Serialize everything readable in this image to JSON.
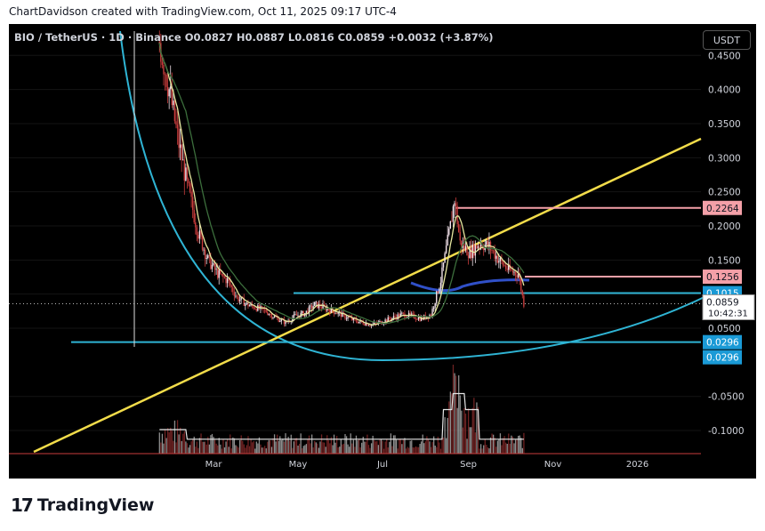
{
  "header": {
    "credit": "ChartDavidson created with TradingView.com, Oct 11, 2025 09:17 UTC-4"
  },
  "legend": {
    "pair": "BIO / TetherUS · 1D · Binance",
    "open": "O0.0827",
    "high": "H0.0887",
    "low": "L0.0816",
    "close": "C0.0859",
    "change": "+0.0032 (+3.87%)"
  },
  "currency_button": "USDT",
  "footer": {
    "brand": "TradingView",
    "logo_mark": "17"
  },
  "colors": {
    "background": "#000000",
    "up": "#f0e0e8",
    "down": "#c83c3c",
    "trendline": "#f2dc4a",
    "arc": "#2fb4d4",
    "hline_cyan": "#2fb4d4",
    "hline_pink": "#f4a0a8",
    "ma_dark": "#3c6e3c",
    "ma_light": "#e8e8a0",
    "volume_ma": "#e6e6e6",
    "cup_line": "#3050c8"
  },
  "chart_data": {
    "type": "line",
    "x_ticks": [
      "Mar",
      "May",
      "Jul",
      "Sep",
      "Nov",
      "2026"
    ],
    "y_ticks": [
      0.45,
      0.4,
      0.35,
      0.3,
      0.25,
      0.2,
      0.15,
      0.1,
      0.05,
      -0.05,
      -0.1
    ],
    "y_tick_labels": [
      "0.4500",
      "0.4000",
      "0.3500",
      "0.3000",
      "0.2500",
      "0.2000",
      "0.1500",
      "0.1000",
      "0.0500",
      "-0.0500",
      "-0.1000"
    ],
    "ylim": [
      -0.13,
      0.49
    ],
    "price_labels": [
      {
        "value": 0.2264,
        "label": "0.2264",
        "kind": "pink"
      },
      {
        "value": 0.1256,
        "label": "0.1256",
        "kind": "pink"
      },
      {
        "value": 0.1015,
        "label": "0.1015",
        "kind": "cyan"
      },
      {
        "value": 0.0296,
        "label": "0.0296",
        "kind": "cyan"
      },
      {
        "value": 0.0296,
        "label": "0.0296",
        "kind": "cyan"
      }
    ],
    "last_price": {
      "value": 0.0859,
      "label": "0.0859",
      "countdown": "10:42:31"
    },
    "horizontal_lines": [
      {
        "value": 0.1015,
        "kind": "cyan"
      },
      {
        "value": 0.0296,
        "kind": "cyan"
      },
      {
        "value": 0.2264,
        "kind": "pink"
      },
      {
        "value": 0.1256,
        "kind": "pink"
      }
    ],
    "price_series": {
      "x": [
        "Jan 21",
        "Jan 28",
        "Feb 04",
        "Feb 11",
        "Feb 18",
        "Feb 25",
        "Mar 04",
        "Mar 11",
        "Mar 18",
        "Mar 25",
        "Apr 01",
        "Apr 08",
        "Apr 15",
        "Apr 22",
        "Apr 29",
        "May 06",
        "May 13",
        "May 20",
        "May 27",
        "Jun 03",
        "Jun 10",
        "Jun 17",
        "Jun 24",
        "Jul 01",
        "Jul 08",
        "Jul 15",
        "Jul 22",
        "Jul 29",
        "Aug 05",
        "Aug 12",
        "Aug 19",
        "Aug 22",
        "Aug 26",
        "Sep 02",
        "Sep 09",
        "Sep 16",
        "Sep 23",
        "Sep 30",
        "Oct 07",
        "Oct 11"
      ],
      "close": [
        0.47,
        0.4,
        0.32,
        0.25,
        0.19,
        0.15,
        0.13,
        0.12,
        0.095,
        0.085,
        0.08,
        0.075,
        0.065,
        0.058,
        0.068,
        0.072,
        0.085,
        0.08,
        0.075,
        0.068,
        0.062,
        0.058,
        0.055,
        0.06,
        0.065,
        0.07,
        0.068,
        0.064,
        0.07,
        0.12,
        0.2,
        0.24,
        0.175,
        0.16,
        0.175,
        0.17,
        0.15,
        0.135,
        0.13,
        0.0859
      ]
    },
    "volume_scale_max": 0.1
  }
}
